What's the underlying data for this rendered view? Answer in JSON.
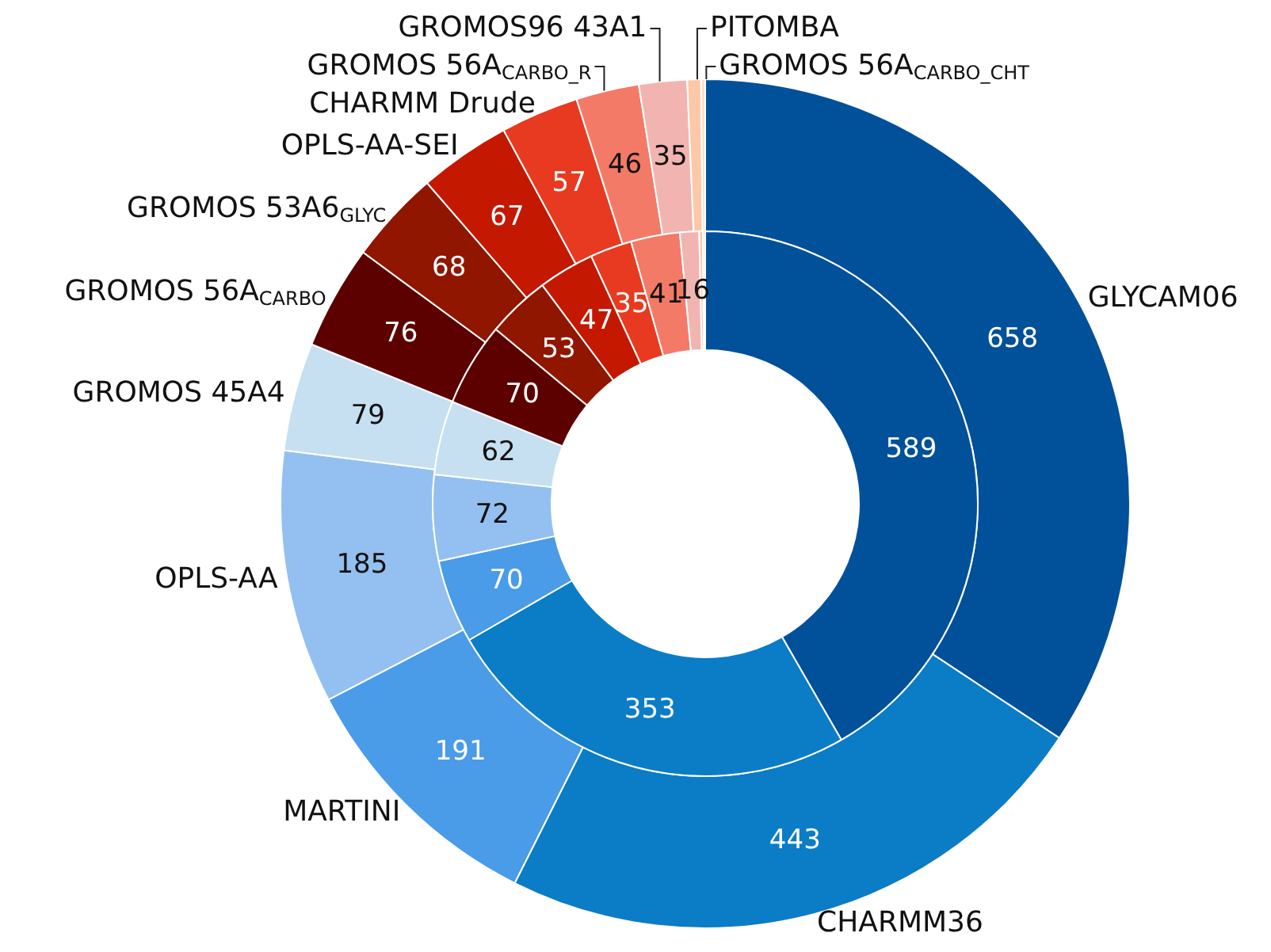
{
  "chart_data": {
    "type": "donut",
    "categories": [
      "GLYCAM06",
      "CHARMM36",
      "MARTINI",
      "OPLS-AA",
      "GROMOS 45A4",
      "GROMOS 56A$_{CARBO}$",
      "GROMOS 53A6$_{GLYC}$",
      "OPLS-AA-SEI",
      "CHARMM Drude",
      "GROMOS 56A$_{CARBO_R}$",
      "GROMOS96 43A1",
      "PITOMBA",
      "GROMOS 56A$_{CARBO_CHT}$"
    ],
    "colors": [
      "#00509a",
      "#0b7cc6",
      "#4a9be8",
      "#93c0f0",
      "#c6e0f2",
      "#5c0000",
      "#901600",
      "#c41800",
      "#e83a20",
      "#f47a68",
      "#f2b4b0",
      "#fcc8a8",
      "#fde0c8"
    ],
    "series": [
      {
        "values": [
          658,
          443,
          191,
          185,
          79,
          76,
          68,
          67,
          57,
          46,
          35,
          10,
          3
        ],
        "value_labels": [
          "658",
          "443",
          "191",
          "185",
          "79",
          "76",
          "68",
          "67",
          "57",
          "46",
          "35",
          null,
          null
        ]
      },
      {
        "values": [
          589,
          353,
          70,
          72,
          62,
          70,
          53,
          47,
          35,
          41,
          16,
          3,
          2
        ],
        "value_labels": [
          "589",
          "353",
          "70",
          "72",
          "62",
          "70",
          "53",
          "47",
          "35",
          "41",
          "16",
          null,
          null
        ]
      }
    ],
    "legend": false
  }
}
